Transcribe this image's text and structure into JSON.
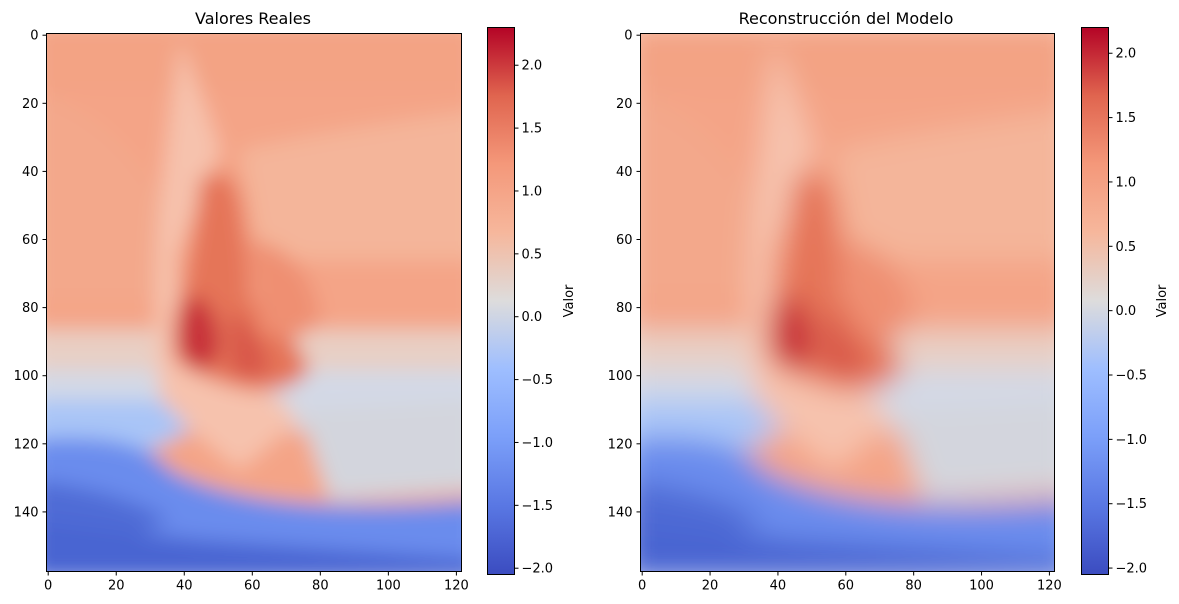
{
  "chart_data": [
    {
      "type": "heatmap",
      "title": "Valores Reales",
      "colormap": "coolwarm",
      "x_range": [
        0,
        121
      ],
      "y_range": [
        0,
        157
      ],
      "y_inverted": true,
      "x_ticks": [
        "0",
        "20",
        "40",
        "60",
        "80",
        "100",
        "120"
      ],
      "y_ticks": [
        "0",
        "20",
        "40",
        "60",
        "80",
        "100",
        "120",
        "140"
      ],
      "colorbar": {
        "label": "Valor",
        "range": [
          -2.05,
          2.3
        ],
        "ticks": [
          "−2.0",
          "−1.5",
          "−1.0",
          "−0.5",
          "0.0",
          "0.5",
          "1.0",
          "1.5",
          "2.0"
        ]
      }
    },
    {
      "type": "heatmap",
      "title": "Reconstrucción del Modelo",
      "colormap": "coolwarm",
      "x_range": [
        0,
        121
      ],
      "y_range": [
        0,
        157
      ],
      "y_inverted": true,
      "x_ticks": [
        "0",
        "20",
        "40",
        "60",
        "80",
        "100",
        "120"
      ],
      "y_ticks": [
        "0",
        "20",
        "40",
        "60",
        "80",
        "100",
        "120",
        "140"
      ],
      "colorbar": {
        "label": "Valor",
        "range": [
          -2.05,
          2.2
        ],
        "ticks": [
          "−2.0",
          "−1.5",
          "−1.0",
          "−0.5",
          "0.0",
          "0.5",
          "1.0",
          "1.5",
          "2.0"
        ]
      }
    }
  ]
}
